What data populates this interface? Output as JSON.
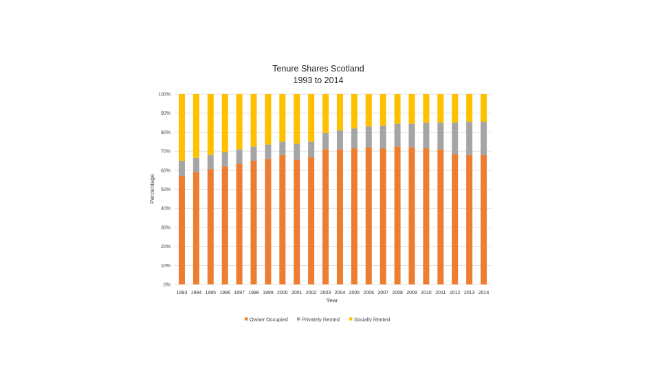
{
  "chart_data": {
    "type": "bar",
    "stacked": true,
    "title": [
      "Tenure Shares Scotland",
      "1993 to 2014"
    ],
    "xlabel": "Year",
    "ylabel": "Percentage",
    "ylim": [
      0,
      100
    ],
    "yticks": [
      "0%",
      "10%",
      "20%",
      "30%",
      "40%",
      "50%",
      "60%",
      "70%",
      "80%",
      "90%",
      "100%"
    ],
    "categories": [
      "1993",
      "1994",
      "1995",
      "1996",
      "1997",
      "1998",
      "1999",
      "2000",
      "2001",
      "2002",
      "2003",
      "2004",
      "2005",
      "2006",
      "2007",
      "2008",
      "2009",
      "2010",
      "2011",
      "2012",
      "2013",
      "2014"
    ],
    "series": [
      {
        "name": "Owner Occupied",
        "color": "#ED7D31",
        "values": [
          57,
          59,
          60.5,
          62,
          63.5,
          65,
          66,
          68,
          65.5,
          67,
          71,
          71,
          71.5,
          72,
          71.5,
          72.5,
          72,
          71.5,
          71,
          68.5,
          68,
          68
        ]
      },
      {
        "name": "Privately Rented",
        "color": "#A5A5A5",
        "values": [
          8,
          7.5,
          7.5,
          7.5,
          7.5,
          7.5,
          7.5,
          7,
          8.5,
          8,
          8.5,
          10,
          10.5,
          11,
          12,
          12,
          12.5,
          13.5,
          14,
          16.5,
          17.5,
          17.5
        ]
      },
      {
        "name": "Socially Rented",
        "color": "#FFC000",
        "values": [
          35,
          33.5,
          32,
          30.5,
          29,
          27.5,
          26.5,
          25,
          26,
          25,
          20.5,
          19,
          18,
          17,
          16.5,
          15.5,
          15.5,
          15,
          15,
          15,
          14.5,
          14.5
        ]
      }
    ],
    "legend_position": "bottom"
  }
}
